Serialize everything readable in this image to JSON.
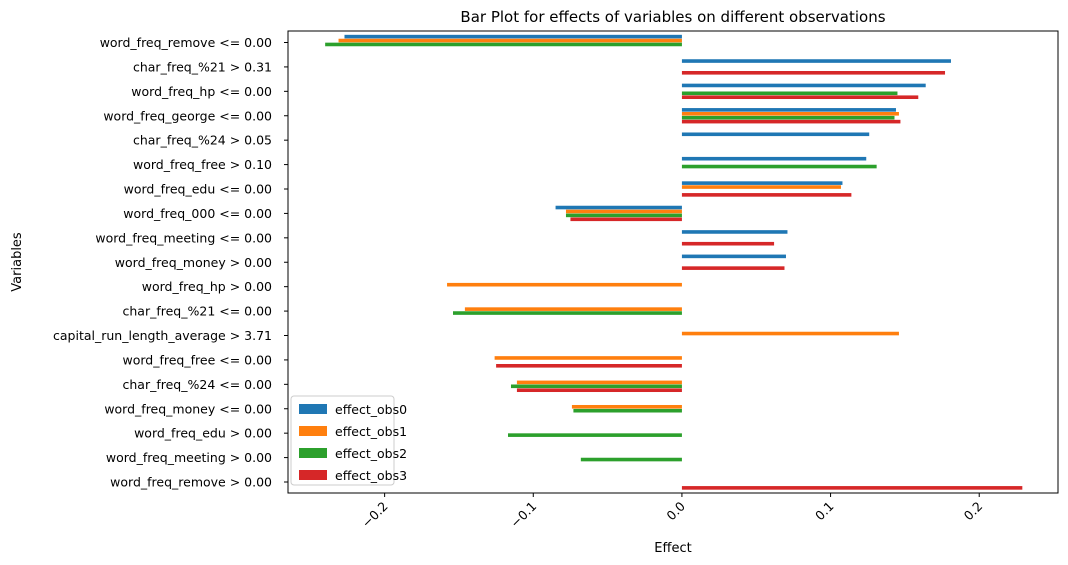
{
  "chart_data": {
    "type": "bar",
    "orientation": "horizontal",
    "title": "Bar Plot for effects of variables on different observations",
    "xlabel": "Effect",
    "ylabel": "Variables",
    "xlim": [
      -0.265,
      0.253
    ],
    "xticks": [
      -0.2,
      -0.1,
      0.0,
      0.1,
      0.2
    ],
    "xtick_labels": [
      "−0.2",
      "−0.1",
      "0.0",
      "0.1",
      "0.2"
    ],
    "grid": false,
    "legend_position": "lower-left",
    "categories": [
      "word_freq_remove <= 0.00",
      "char_freq_%21 > 0.31",
      "word_freq_hp <= 0.00",
      "word_freq_george <= 0.00",
      "char_freq_%24 > 0.05",
      "word_freq_free > 0.10",
      "word_freq_edu <= 0.00",
      "word_freq_000 <= 0.00",
      "word_freq_meeting <= 0.00",
      "word_freq_money > 0.00",
      "word_freq_hp > 0.00",
      "char_freq_%21 <= 0.00",
      "capital_run_length_average > 3.71",
      "word_freq_free <= 0.00",
      "char_freq_%24 <= 0.00",
      "word_freq_money <= 0.00",
      "word_freq_edu > 0.00",
      "word_freq_meeting > 0.00",
      "word_freq_remove > 0.00"
    ],
    "series": [
      {
        "name": "effect_obs0",
        "color": "#1f77b4",
        "values": [
          -0.227,
          0.181,
          0.164,
          0.144,
          0.126,
          0.124,
          0.108,
          -0.085,
          0.071,
          0.07,
          0,
          0,
          0,
          0,
          0,
          0,
          0,
          0,
          0
        ]
      },
      {
        "name": "effect_obs1",
        "color": "#ff7f0e",
        "values": [
          -0.231,
          0,
          0,
          0.146,
          0,
          0,
          0.107,
          -0.078,
          0,
          0,
          -0.158,
          -0.146,
          0.146,
          -0.126,
          -0.111,
          -0.074,
          0,
          0,
          0
        ]
      },
      {
        "name": "effect_obs2",
        "color": "#2ca02c",
        "values": [
          -0.24,
          0,
          0.145,
          0.143,
          0,
          0.131,
          0,
          -0.078,
          0,
          0,
          0,
          -0.154,
          0,
          0,
          -0.115,
          -0.073,
          -0.117,
          -0.068,
          0
        ]
      },
      {
        "name": "effect_obs3",
        "color": "#d62728",
        "values": [
          0,
          0.177,
          0.159,
          0.147,
          0,
          0,
          0.114,
          -0.075,
          0.062,
          0.069,
          0,
          0,
          0,
          -0.125,
          -0.111,
          0,
          0,
          0,
          0.229
        ]
      }
    ]
  }
}
